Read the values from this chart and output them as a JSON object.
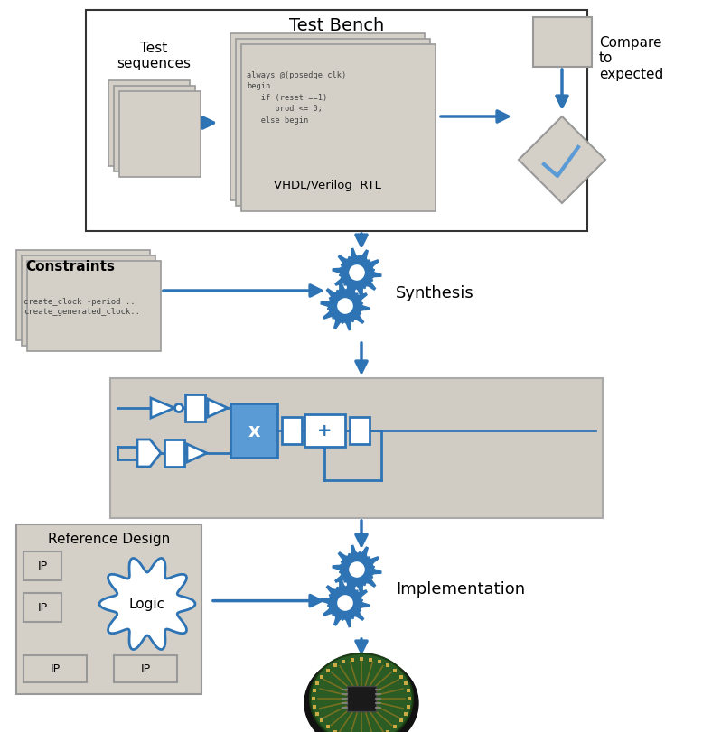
{
  "bg_color": "#ffffff",
  "blue": "#2E74B5",
  "light_blue": "#5B9BD5",
  "gray_fill": "#D4D0C8",
  "gray_fill2": "#C8C4BC",
  "title_bench": "Test Bench",
  "title_synthesis": "Synthesis",
  "title_implementation": "Implementation",
  "label_test_seq": "Test\nsequences",
  "label_vhdl": "VHDL/Verilog  RTL",
  "label_compare": "Compare\nto\nexpected",
  "label_constraints": "Constraints",
  "label_constraints_sub": "create_clock -period ..\ncreate_generated_clock..",
  "label_ref_design": "Reference Design",
  "label_logic": "Logic",
  "label_ip": "IP",
  "code_text": "always @(posedge clk)\nbegin\n   if (reset ==1)\n      prod <= 0;\n   else begin"
}
